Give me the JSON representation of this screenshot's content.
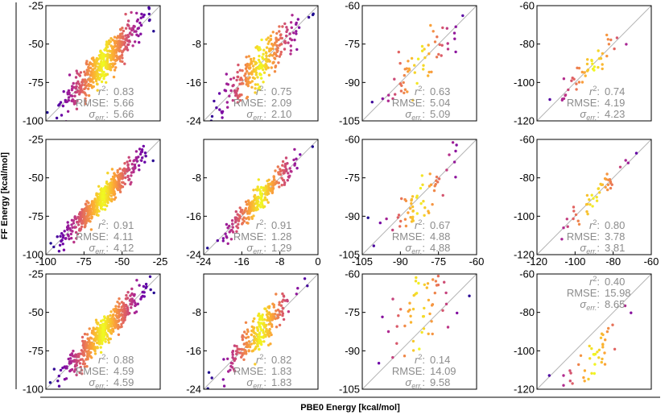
{
  "figure": {
    "xlabel": "PBE0 Energy [kcal/mol]",
    "ylabel": "FF Energy [kcal/mol]",
    "stat_labels": {
      "r2_base": "r",
      "r2_sup": "2",
      "r2_suffix": ":",
      "rmse": "RMSE:",
      "sigma_base": "σ",
      "sigma_sub": "err.",
      "sigma_suffix": ":"
    },
    "colors": {
      "scatter_scale": [
        "#1f0c90",
        "#6a00a8",
        "#b12a90",
        "#e16462",
        "#fca636",
        "#f0f921"
      ],
      "identity_line": "#b4b4b4",
      "stats_text": "#8c8c8c"
    }
  },
  "chart_data": [
    {
      "type": "scatter",
      "row": 0,
      "col": 0,
      "xlim": [
        -100,
        -25
      ],
      "ylim": [
        -100,
        -25
      ],
      "yticks": [
        -25,
        -50,
        -75,
        -100
      ],
      "xticks": [],
      "n": 500,
      "spread": 6,
      "offset": 0,
      "seed": 11,
      "stats": {
        "r2": "0.83",
        "rmse": "5.66",
        "sigma": "5.66"
      },
      "stats_pos": "bottom-right"
    },
    {
      "type": "scatter",
      "row": 0,
      "col": 1,
      "xlim": [
        -24,
        0
      ],
      "ylim": [
        -24,
        0
      ],
      "yticks": [
        -8,
        -16,
        -24
      ],
      "xticks": [],
      "n": 260,
      "spread": 2,
      "offset": 0,
      "seed": 12,
      "stats": {
        "r2": "0.75",
        "rmse": "2.09",
        "sigma": "2.10"
      },
      "stats_pos": "bottom-right"
    },
    {
      "type": "scatter",
      "row": 0,
      "col": 2,
      "xlim": [
        -105,
        -60
      ],
      "ylim": [
        -105,
        -60
      ],
      "yticks": [
        -60,
        -75,
        -90,
        -105
      ],
      "xticks": [],
      "n": 60,
      "spread": 5,
      "offset": 0,
      "seed": 13,
      "stats": {
        "r2": "0.63",
        "rmse": "5.04",
        "sigma": "5.09"
      },
      "stats_pos": "bottom-right"
    },
    {
      "type": "scatter",
      "row": 0,
      "col": 3,
      "xlim": [
        -120,
        -60
      ],
      "ylim": [
        -120,
        -60
      ],
      "yticks": [
        -60,
        -80,
        -100,
        -120
      ],
      "xticks": [],
      "n": 45,
      "spread": 4,
      "offset": 0,
      "seed": 14,
      "stats": {
        "r2": "0.74",
        "rmse": "4.19",
        "sigma": "4.23"
      },
      "stats_pos": "bottom-right"
    },
    {
      "type": "scatter",
      "row": 1,
      "col": 0,
      "xlim": [
        -100,
        -25
      ],
      "ylim": [
        -100,
        -25
      ],
      "yticks": [
        -25,
        -50,
        -75,
        -100
      ],
      "xticks": [
        -100,
        -75,
        -50,
        -25
      ],
      "n": 500,
      "spread": 4,
      "offset": 0,
      "seed": 21,
      "stats": {
        "r2": "0.91",
        "rmse": "4.11",
        "sigma": "4.12"
      },
      "stats_pos": "bottom-right"
    },
    {
      "type": "scatter",
      "row": 1,
      "col": 1,
      "xlim": [
        -24,
        0
      ],
      "ylim": [
        -24,
        0
      ],
      "yticks": [
        -8,
        -16,
        -24
      ],
      "xticks": [
        -24,
        -16,
        -8,
        0
      ],
      "n": 260,
      "spread": 1.2,
      "offset": 0,
      "seed": 22,
      "stats": {
        "r2": "0.91",
        "rmse": "1.28",
        "sigma": "1.29"
      },
      "stats_pos": "bottom-right"
    },
    {
      "type": "scatter",
      "row": 1,
      "col": 2,
      "xlim": [
        -105,
        -60
      ],
      "ylim": [
        -105,
        -60
      ],
      "yticks": [
        -60,
        -75,
        -90,
        -105
      ],
      "xticks": [
        -105,
        -90,
        -75,
        -60
      ],
      "n": 60,
      "spread": 4.5,
      "offset": 0,
      "seed": 23,
      "stats": {
        "r2": "0.67",
        "rmse": "4.88",
        "sigma": "4.88"
      },
      "stats_pos": "bottom-right"
    },
    {
      "type": "scatter",
      "row": 1,
      "col": 3,
      "xlim": [
        -120,
        -60
      ],
      "ylim": [
        -120,
        -60
      ],
      "yticks": [
        -60,
        -80,
        -100,
        -120
      ],
      "xticks": [
        -120,
        -100,
        -80,
        -60
      ],
      "n": 45,
      "spread": 3.5,
      "offset": 0,
      "seed": 24,
      "stats": {
        "r2": "0.80",
        "rmse": "3.78",
        "sigma": "3.81"
      },
      "stats_pos": "bottom-right"
    },
    {
      "type": "scatter",
      "row": 2,
      "col": 0,
      "xlim": [
        -100,
        -25
      ],
      "ylim": [
        -100,
        -25
      ],
      "yticks": [
        -25,
        -50,
        -75,
        -100
      ],
      "xticks": [],
      "n": 500,
      "spread": 4.5,
      "offset": 0,
      "seed": 31,
      "stats": {
        "r2": "0.88",
        "rmse": "4.59",
        "sigma": "4.59"
      },
      "stats_pos": "bottom-right"
    },
    {
      "type": "scatter",
      "row": 2,
      "col": 1,
      "xlim": [
        -24,
        0
      ],
      "ylim": [
        -24,
        0
      ],
      "yticks": [
        -8,
        -16,
        -24
      ],
      "xticks": [],
      "n": 260,
      "spread": 1.8,
      "offset": 0,
      "seed": 32,
      "stats": {
        "r2": "0.82",
        "rmse": "1.83",
        "sigma": "1.83"
      },
      "stats_pos": "bottom-right"
    },
    {
      "type": "scatter",
      "row": 2,
      "col": 2,
      "xlim": [
        -105,
        -60
      ],
      "ylim": [
        -105,
        -60
      ],
      "yticks": [
        -60,
        -75,
        -90,
        -105
      ],
      "xticks": [],
      "n": 60,
      "spread": 9,
      "offset": 8,
      "seed": 33,
      "stats": {
        "r2": "0.14",
        "rmse": "14.09",
        "sigma": "9.58"
      },
      "stats_pos": "bottom-right"
    },
    {
      "type": "scatter",
      "row": 2,
      "col": 3,
      "xlim": [
        -120,
        -60
      ],
      "ylim": [
        -120,
        -60
      ],
      "yticks": [
        -60,
        -80,
        -100,
        -120
      ],
      "xticks": [],
      "n": 45,
      "spread": 6,
      "offset": -13,
      "seed": 34,
      "stats": {
        "r2": "0.40",
        "rmse": "15.98",
        "sigma": "8.65"
      },
      "stats_pos": "top-left"
    }
  ]
}
